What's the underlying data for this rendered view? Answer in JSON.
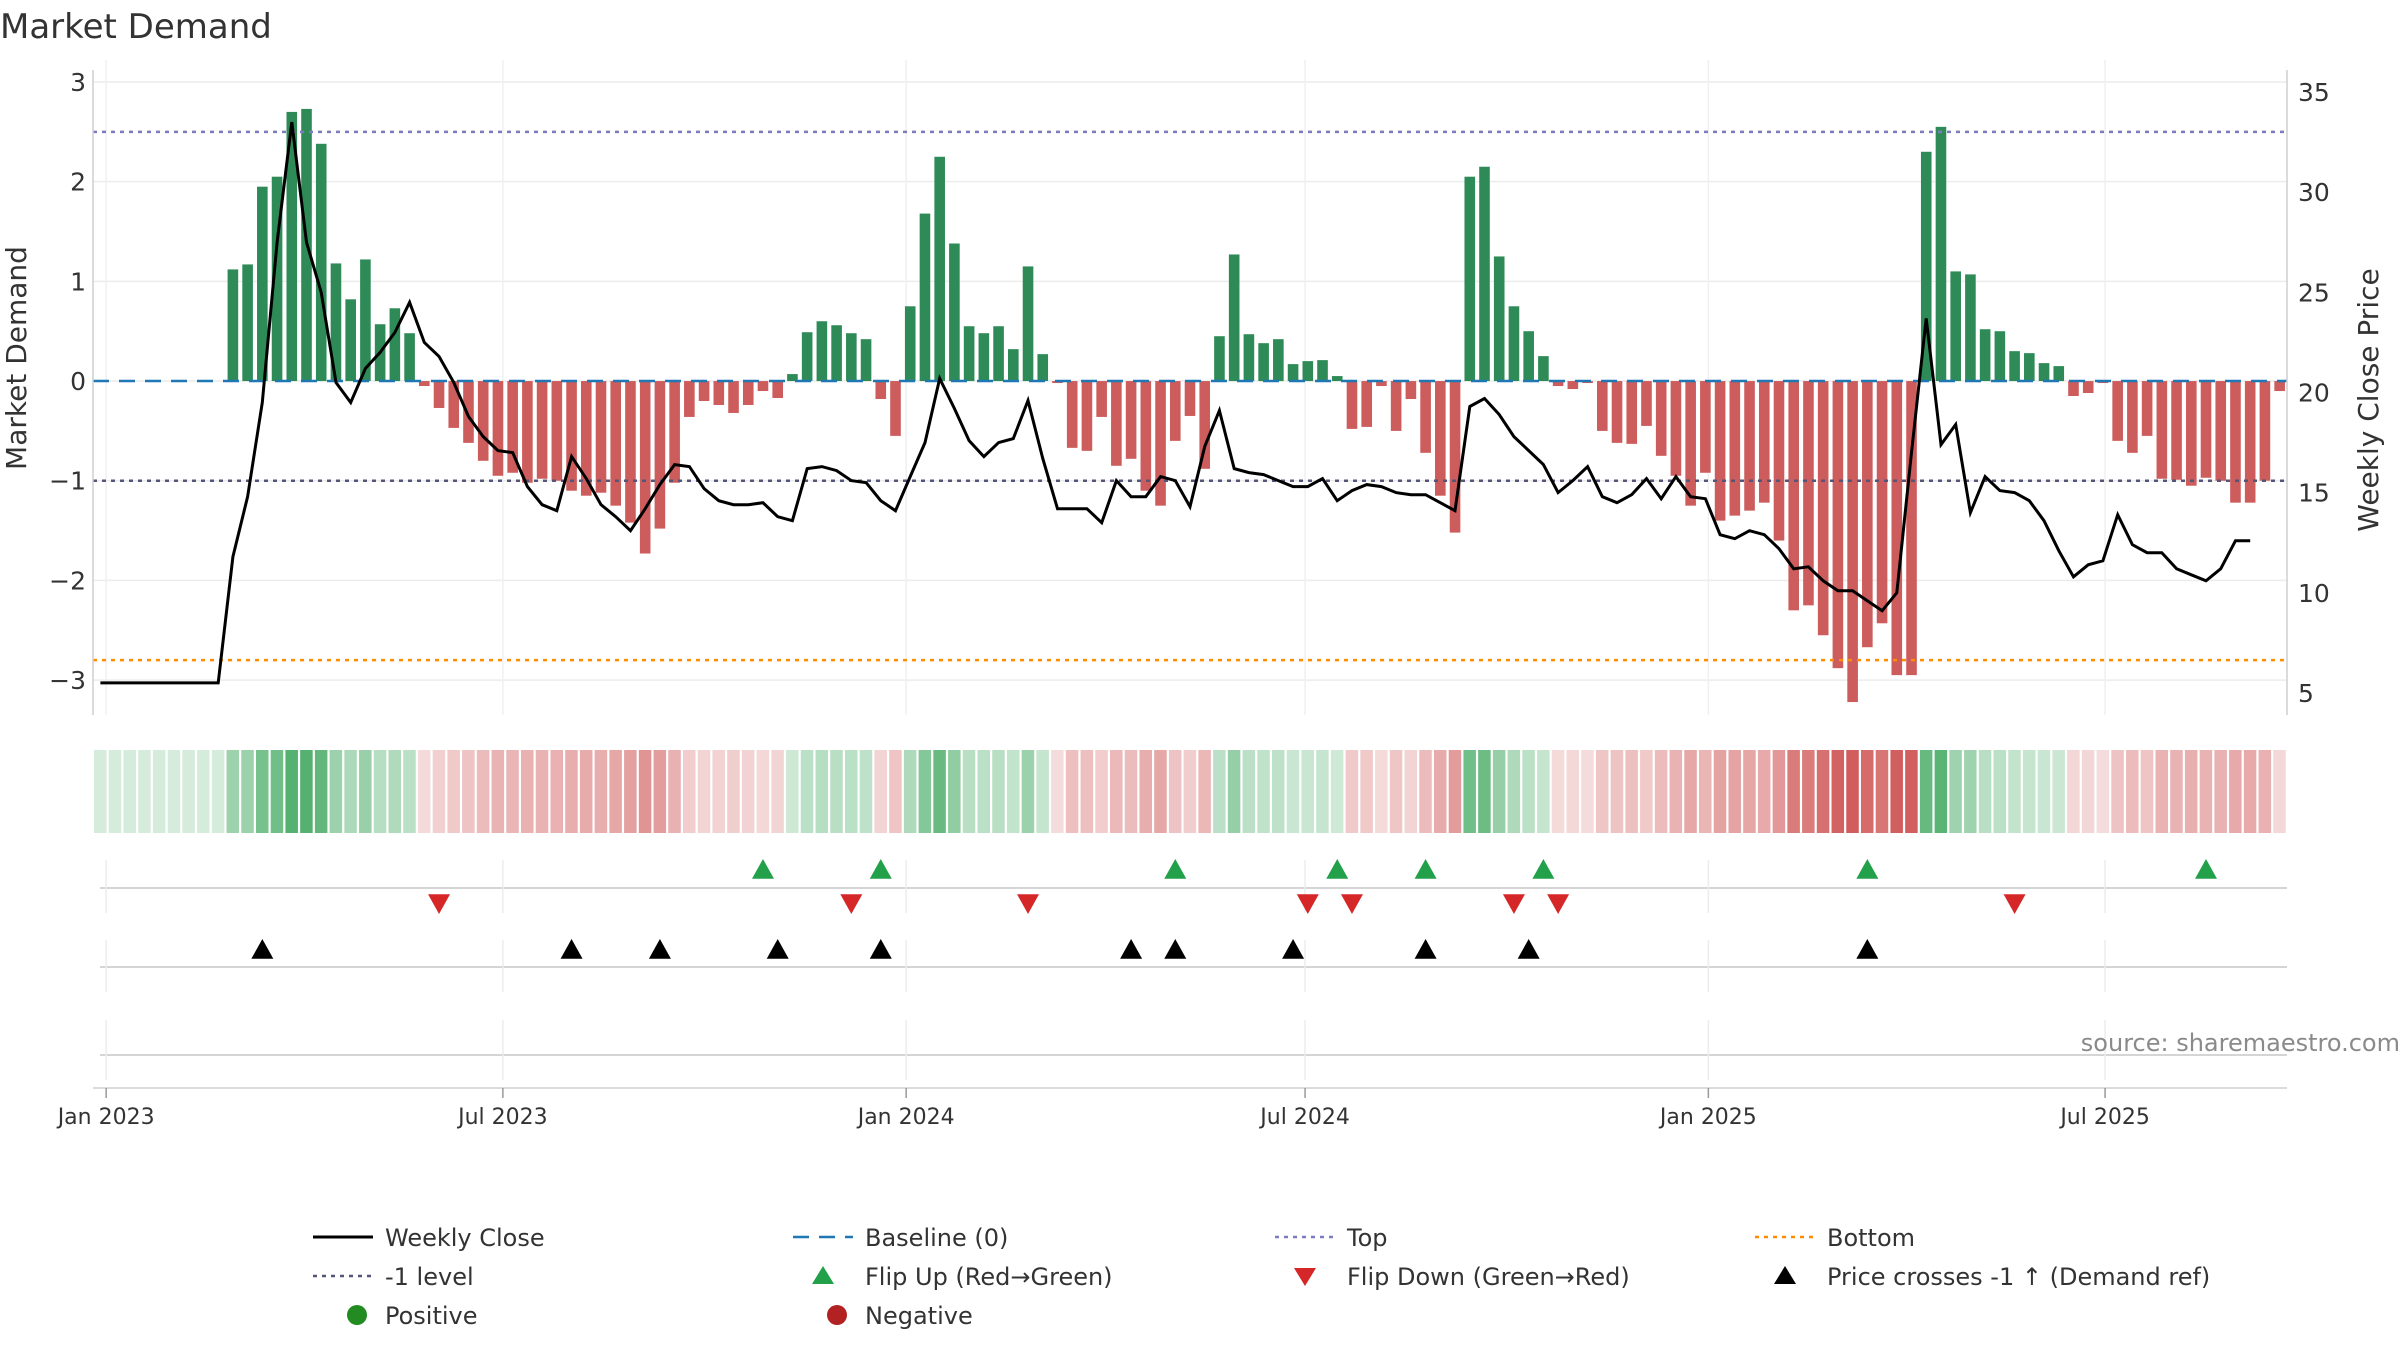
{
  "chart_data": {
    "type": "bar+line",
    "title": "Market Demand",
    "left_axis": {
      "label": "Market Demand",
      "range": [
        -3.35,
        3.0
      ],
      "ticks": [
        3,
        2,
        1,
        0,
        -1,
        -2,
        -3
      ],
      "tick_labels": [
        "3",
        "2",
        "1",
        "0",
        "−1",
        "−2",
        "−3"
      ]
    },
    "right_axis": {
      "label": "Weekly Close Price",
      "range": [
        3.9,
        35.5
      ],
      "ticks": [
        35,
        30,
        25,
        20,
        15,
        10,
        5
      ],
      "tick_labels": [
        "35",
        "30",
        "25",
        "20",
        "15",
        "10",
        "5"
      ]
    },
    "x_axis": {
      "start_date": "2022-12-26",
      "end_date": "2025-09-22",
      "tick_labels": [
        "Jan 2023",
        "Jul 2023",
        "Jan 2024",
        "Jul 2024",
        "Jan 2025",
        "Jul 2025"
      ],
      "tick_dates": [
        "2023-01-01",
        "2023-07-01",
        "2024-01-01",
        "2024-07-01",
        "2025-01-01",
        "2025-07-01"
      ]
    },
    "reference_levels": {
      "baseline": 0,
      "top": 2.5,
      "minus_one": -1,
      "bottom": -2.8
    },
    "demand": [
      0,
      0,
      0,
      0,
      0,
      0,
      0,
      0,
      0,
      1.12,
      1.17,
      1.95,
      2.05,
      2.7,
      2.73,
      2.38,
      1.18,
      0.82,
      1.22,
      0.57,
      0.73,
      0.48,
      -0.05,
      -0.27,
      -0.47,
      -0.62,
      -0.8,
      -0.95,
      -0.92,
      -1.02,
      -0.98,
      -1.0,
      -1.1,
      -1.15,
      -1.12,
      -1.25,
      -1.42,
      -1.73,
      -1.48,
      -1.02,
      -0.36,
      -0.2,
      -0.24,
      -0.32,
      -0.24,
      -0.1,
      -0.17,
      0.07,
      0.49,
      0.6,
      0.56,
      0.48,
      0.42,
      -0.18,
      -0.55,
      0.75,
      1.68,
      2.25,
      1.38,
      0.55,
      0.48,
      0.55,
      0.32,
      1.15,
      0.27,
      -0.02,
      -0.67,
      -0.7,
      -0.36,
      -0.85,
      -0.78,
      -1.1,
      -1.25,
      -0.6,
      -0.35,
      -0.88,
      0.45,
      1.27,
      0.47,
      0.38,
      0.42,
      0.17,
      0.2,
      0.21,
      0.05,
      -0.48,
      -0.46,
      -0.05,
      -0.5,
      -0.18,
      -0.72,
      -1.15,
      -1.52,
      2.05,
      2.15,
      1.25,
      0.75,
      0.5,
      0.25,
      -0.05,
      -0.08,
      -0.02,
      -0.5,
      -0.62,
      -0.63,
      -0.45,
      -0.75,
      -0.95,
      -1.25,
      -0.92,
      -1.4,
      -1.35,
      -1.3,
      -1.22,
      -1.6,
      -2.3,
      -2.25,
      -2.55,
      -2.88,
      -3.22,
      -2.67,
      -2.43,
      -2.95,
      -2.95,
      2.3,
      2.55,
      1.1,
      1.07,
      0.52,
      0.5,
      0.3,
      0.28,
      0.18,
      0.15,
      -0.15,
      -0.12,
      -0.02,
      -0.6,
      -0.72,
      -0.55,
      -0.98,
      -0.99,
      -1.05,
      -0.97,
      -1.0,
      -1.22,
      -1.22,
      -1.0,
      -0.1
    ],
    "weekly_close": [
      5.5,
      5.5,
      5.5,
      5.5,
      5.5,
      5.5,
      5.5,
      5.5,
      5.5,
      11.8,
      14.8,
      19.5,
      27.5,
      33.5,
      27.5,
      25.0,
      20.5,
      19.5,
      21.2,
      22.0,
      23.0,
      24.5,
      22.5,
      21.8,
      20.5,
      18.8,
      17.8,
      17.1,
      17.0,
      15.3,
      14.4,
      14.1,
      16.8,
      15.7,
      14.4,
      13.8,
      13.1,
      14.2,
      15.4,
      16.4,
      16.3,
      15.2,
      14.6,
      14.4,
      14.4,
      14.5,
      13.8,
      13.6,
      16.2,
      16.3,
      16.1,
      15.6,
      15.5,
      14.6,
      14.1,
      15.8,
      17.5,
      20.7,
      19.2,
      17.6,
      16.8,
      17.5,
      17.7,
      19.6,
      16.7,
      14.2,
      14.2,
      14.2,
      13.5,
      15.6,
      14.8,
      14.8,
      15.8,
      15.6,
      14.3,
      17.3,
      19.1,
      16.2,
      16.0,
      15.9,
      15.6,
      15.3,
      15.3,
      15.7,
      14.6,
      15.1,
      15.4,
      15.3,
      15.0,
      14.9,
      14.9,
      14.5,
      14.1,
      19.3,
      19.7,
      18.9,
      17.8,
      17.1,
      16.4,
      15.0,
      15.6,
      16.3,
      14.8,
      14.5,
      14.9,
      15.7,
      14.7,
      15.8,
      14.8,
      14.7,
      12.9,
      12.7,
      13.1,
      12.9,
      12.2,
      11.2,
      11.3,
      10.6,
      10.1,
      10.1,
      9.6,
      9.1,
      10.0,
      17.0,
      23.7,
      17.4,
      18.4,
      14.0,
      15.8,
      15.1,
      15.0,
      14.6,
      13.6,
      12.1,
      10.8,
      11.4,
      11.6,
      13.9,
      12.4,
      12.0,
      12.0,
      11.2,
      10.9,
      10.6,
      11.2,
      12.6,
      12.6
    ],
    "events": {
      "flip_up_weeks": [
        45,
        53,
        73,
        84,
        90,
        98,
        120,
        143
      ],
      "flip_down_weeks": [
        23,
        51,
        63,
        82,
        85,
        96,
        99,
        130
      ],
      "price_cross_weeks": [
        11,
        32,
        38,
        46,
        53,
        70,
        73,
        81,
        90,
        97,
        120
      ]
    },
    "legend": [
      {
        "key": "weekly_close",
        "label": "Weekly Close"
      },
      {
        "key": "baseline",
        "label": "Baseline (0)"
      },
      {
        "key": "top",
        "label": "Top"
      },
      {
        "key": "bottom",
        "label": "Bottom"
      },
      {
        "key": "minus_one",
        "label": "-1 level"
      },
      {
        "key": "flip_up",
        "label": "Flip Up (Red→Green)"
      },
      {
        "key": "flip_down",
        "label": "Flip Down (Green→Red)"
      },
      {
        "key": "price_cross",
        "label": "Price crosses -1 ↑ (Demand ref)"
      },
      {
        "key": "positive",
        "label": "Positive"
      },
      {
        "key": "negative",
        "label": "Negative"
      }
    ],
    "colors": {
      "positive_bar": "#2e8b57",
      "negative_bar": "#cd5c5c",
      "close_line": "#000000",
      "baseline": "#1f77b4",
      "top": "#7b7bbf",
      "minus_one": "#555577",
      "bottom": "#ff8c00",
      "flip_up": "#22a14a",
      "flip_down": "#d62728",
      "price_cross": "#000000",
      "positive_dot": "#228b22",
      "negative_dot": "#b22222"
    }
  },
  "source_text": "source: sharemaestro.com"
}
